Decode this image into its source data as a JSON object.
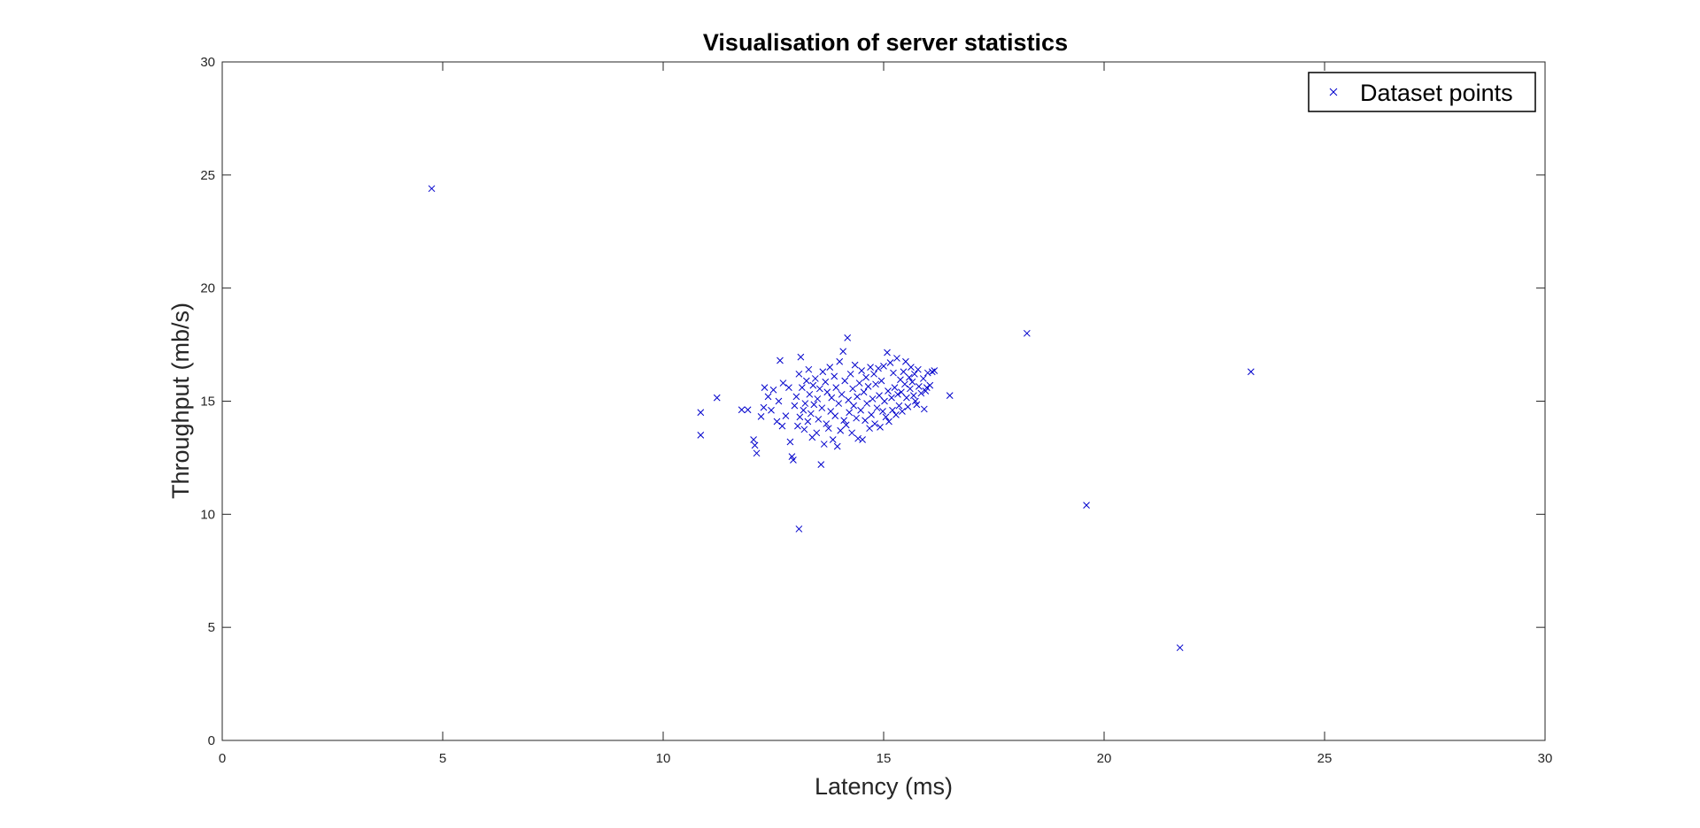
{
  "chart_data": {
    "type": "scatter",
    "title": "Visualisation of server statistics",
    "xlabel": "Latency (ms)",
    "ylabel": "Throughput (mb/s)",
    "xlim": [
      0,
      30
    ],
    "ylim": [
      0,
      30
    ],
    "xticks": [
      0,
      5,
      10,
      15,
      20,
      25,
      30
    ],
    "yticks": [
      0,
      5,
      10,
      15,
      20,
      25,
      30
    ],
    "grid": false,
    "legend_position": "top-right",
    "marker": "x",
    "color": "#0000CC",
    "series": [
      {
        "name": "Dataset points",
        "points": [
          [
            4.75,
            24.4
          ],
          [
            18.25,
            18.0
          ],
          [
            23.33,
            16.3
          ],
          [
            19.6,
            10.4
          ],
          [
            21.72,
            4.1
          ],
          [
            13.08,
            9.35
          ],
          [
            10.85,
            14.5
          ],
          [
            10.85,
            13.5
          ],
          [
            11.22,
            15.15
          ],
          [
            11.78,
            14.62
          ],
          [
            11.92,
            14.62
          ],
          [
            12.05,
            13.3
          ],
          [
            12.08,
            13.05
          ],
          [
            12.12,
            12.7
          ],
          [
            12.22,
            14.32
          ],
          [
            12.28,
            14.72
          ],
          [
            12.3,
            15.6
          ],
          [
            12.38,
            15.2
          ],
          [
            12.45,
            14.6
          ],
          [
            12.5,
            15.5
          ],
          [
            12.58,
            14.1
          ],
          [
            12.62,
            15.0
          ],
          [
            12.65,
            16.8
          ],
          [
            12.7,
            13.9
          ],
          [
            12.72,
            15.8
          ],
          [
            12.78,
            14.35
          ],
          [
            12.85,
            15.6
          ],
          [
            12.88,
            13.2
          ],
          [
            12.92,
            12.55
          ],
          [
            12.95,
            12.4
          ],
          [
            12.98,
            14.8
          ],
          [
            13.02,
            15.2
          ],
          [
            13.05,
            13.9
          ],
          [
            13.08,
            16.2
          ],
          [
            13.1,
            14.3
          ],
          [
            13.12,
            16.95
          ],
          [
            13.15,
            15.6
          ],
          [
            13.18,
            14.6
          ],
          [
            13.2,
            13.75
          ],
          [
            13.22,
            14.9
          ],
          [
            13.25,
            15.9
          ],
          [
            13.28,
            14.1
          ],
          [
            13.3,
            16.4
          ],
          [
            13.32,
            15.3
          ],
          [
            13.35,
            14.45
          ],
          [
            13.38,
            13.4
          ],
          [
            13.4,
            15.7
          ],
          [
            13.42,
            14.85
          ],
          [
            13.45,
            16.0
          ],
          [
            13.48,
            13.6
          ],
          [
            13.5,
            15.1
          ],
          [
            13.52,
            14.2
          ],
          [
            13.55,
            15.55
          ],
          [
            13.58,
            12.2
          ],
          [
            13.6,
            14.7
          ],
          [
            13.62,
            16.3
          ],
          [
            13.65,
            13.1
          ],
          [
            13.68,
            15.85
          ],
          [
            13.7,
            14.0
          ],
          [
            13.72,
            15.4
          ],
          [
            13.75,
            13.8
          ],
          [
            13.78,
            16.5
          ],
          [
            13.8,
            14.55
          ],
          [
            13.82,
            15.15
          ],
          [
            13.85,
            13.3
          ],
          [
            13.88,
            16.1
          ],
          [
            13.9,
            14.35
          ],
          [
            13.92,
            15.6
          ],
          [
            13.95,
            13.0
          ],
          [
            13.98,
            14.9
          ],
          [
            14.0,
            16.75
          ],
          [
            14.02,
            13.7
          ],
          [
            14.05,
            15.3
          ],
          [
            14.08,
            17.2
          ],
          [
            14.1,
            14.15
          ],
          [
            14.12,
            15.9
          ],
          [
            14.15,
            13.95
          ],
          [
            14.18,
            17.8
          ],
          [
            14.2,
            15.05
          ],
          [
            14.22,
            14.5
          ],
          [
            14.25,
            16.2
          ],
          [
            14.28,
            13.6
          ],
          [
            14.3,
            15.55
          ],
          [
            14.32,
            14.8
          ],
          [
            14.35,
            16.6
          ],
          [
            14.38,
            14.25
          ],
          [
            14.4,
            15.2
          ],
          [
            14.42,
            13.35
          ],
          [
            14.45,
            15.8
          ],
          [
            14.48,
            14.6
          ],
          [
            14.5,
            16.35
          ],
          [
            14.52,
            13.3
          ],
          [
            14.55,
            15.4
          ],
          [
            14.58,
            14.15
          ],
          [
            14.6,
            16.05
          ],
          [
            14.62,
            14.9
          ],
          [
            14.65,
            15.65
          ],
          [
            14.68,
            13.8
          ],
          [
            14.7,
            16.5
          ],
          [
            14.72,
            14.4
          ],
          [
            14.75,
            15.1
          ],
          [
            14.78,
            16.2
          ],
          [
            14.8,
            14.0
          ],
          [
            14.82,
            15.75
          ],
          [
            14.85,
            14.7
          ],
          [
            14.88,
            16.45
          ],
          [
            14.9,
            15.25
          ],
          [
            14.92,
            13.85
          ],
          [
            14.95,
            15.9
          ],
          [
            14.98,
            14.55
          ],
          [
            15.0,
            16.55
          ],
          [
            15.02,
            15.0
          ],
          [
            15.05,
            14.3
          ],
          [
            15.08,
            17.15
          ],
          [
            15.1,
            15.45
          ],
          [
            15.12,
            14.1
          ],
          [
            15.15,
            16.7
          ],
          [
            15.18,
            15.15
          ],
          [
            15.2,
            14.6
          ],
          [
            15.22,
            16.25
          ],
          [
            15.25,
            15.6
          ],
          [
            15.28,
            14.4
          ],
          [
            15.3,
            16.9
          ],
          [
            15.32,
            15.3
          ],
          [
            15.35,
            14.8
          ],
          [
            15.38,
            15.95
          ],
          [
            15.4,
            15.4
          ],
          [
            15.42,
            14.55
          ],
          [
            15.45,
            16.3
          ],
          [
            15.48,
            15.75
          ],
          [
            15.5,
            16.75
          ],
          [
            15.52,
            15.15
          ],
          [
            15.55,
            14.75
          ],
          [
            15.58,
            16.05
          ],
          [
            15.6,
            15.55
          ],
          [
            15.62,
            16.5
          ],
          [
            15.65,
            15.85
          ],
          [
            15.68,
            15.25
          ],
          [
            15.7,
            16.2
          ],
          [
            15.72,
            15.0
          ],
          [
            15.75,
            14.85
          ],
          [
            15.78,
            16.4
          ],
          [
            15.8,
            15.65
          ],
          [
            15.85,
            15.35
          ],
          [
            15.9,
            16.0
          ],
          [
            15.92,
            14.65
          ],
          [
            15.95,
            15.45
          ],
          [
            15.98,
            15.6
          ],
          [
            16.0,
            16.25
          ],
          [
            16.05,
            15.7
          ],
          [
            16.1,
            16.3
          ],
          [
            16.15,
            16.35
          ],
          [
            16.5,
            15.25
          ]
        ]
      }
    ]
  }
}
